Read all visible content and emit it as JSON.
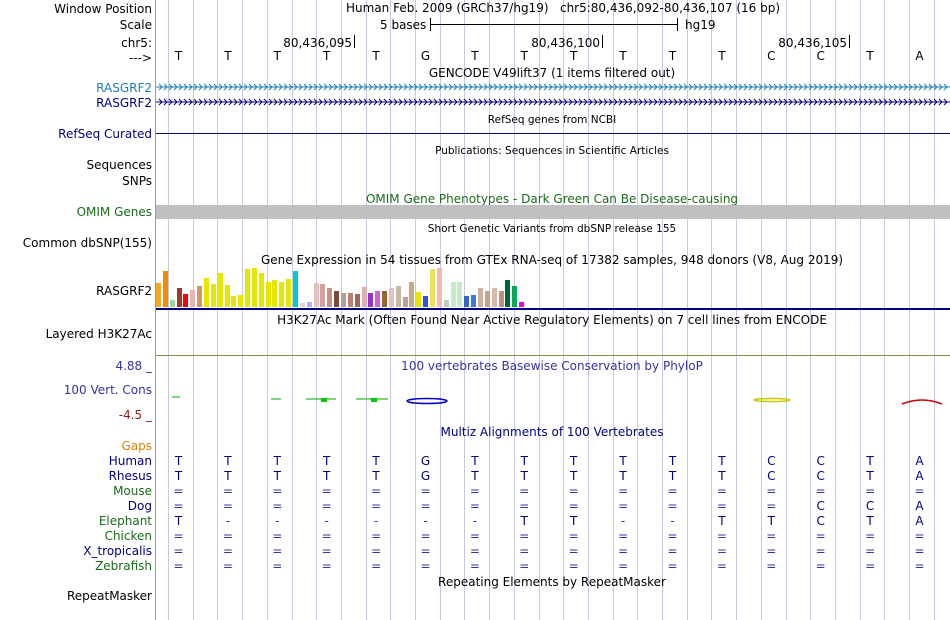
{
  "header": {
    "window_position_label": "Window Position",
    "scale_label": "Scale",
    "chr_label": "chr5:",
    "arrow_label": "--->",
    "assembly": "Human Feb. 2009 (GRCh37/hg19)",
    "position": "chr5:80,436,092-80,436,107 (16 bp)",
    "scale_text": "5 bases",
    "db": "hg19",
    "coords": [
      "80,436,095",
      "80,436,100",
      "80,436,105"
    ]
  },
  "reference_bases": [
    "T",
    "T",
    "T",
    "T",
    "T",
    "G",
    "T",
    "T",
    "T",
    "T",
    "T",
    "T",
    "C",
    "C",
    "T",
    "A"
  ],
  "tracks": {
    "gencode_title": "GENCODE V49lift37 (1 items filtered out)",
    "gencode_items": [
      "RASGRF2",
      "RASGRF2"
    ],
    "refseq_title": "RefSeq genes from NCBI",
    "refseq_label": "RefSeq Curated",
    "publications_title": "Publications: Sequences in Scientific Articles",
    "sequences_label": "Sequences",
    "snps_label": "SNPs",
    "omim_title": "OMIM Gene Phenotypes - Dark Green Can Be Disease-causing",
    "omim_label": "OMIM Genes",
    "dbsnp_title": "Short Genetic Variants from dbSNP release 155",
    "dbsnp_label": "Common dbSNP(155)",
    "gtex_title": "Gene Expression in 54 tissues from GTEx RNA-seq of 17382 samples, 948 donors (V8, Aug 2019)",
    "gtex_label": "RASGRF2",
    "h3k27ac_title": "H3K27Ac Mark (Often Found Near Active Regulatory Elements) on 7 cell lines from ENCODE",
    "h3k27ac_label": "Layered H3K27Ac",
    "phylop_title": "100 vertebrates Basewise Conservation by PhyloP",
    "phylop_label": "100 Vert. Cons",
    "phylop_max": "4.88 _",
    "phylop_min": "-4.5 _",
    "multiz_title": "Multiz Alignments of 100 Vertebrates",
    "gaps_label": "Gaps",
    "repeat_title": "Repeating Elements by RepeatMasker",
    "repeat_label": "RepeatMasker"
  },
  "gtex_bars": [
    {
      "color": "#f5a623",
      "value": 0.62
    },
    {
      "color": "#f28c00",
      "value": 0.92
    },
    {
      "color": "#9fd59f",
      "value": 0.18
    },
    {
      "color": "#9b3c2b",
      "value": 0.49
    },
    {
      "color": "#ff0000",
      "value": 0.34
    },
    {
      "color": "#e8b4b4",
      "value": 0.43
    },
    {
      "color": "#cc9966",
      "value": 0.55
    },
    {
      "color": "#e6e600",
      "value": 0.75
    },
    {
      "color": "#e6e600",
      "value": 0.6
    },
    {
      "color": "#e6e600",
      "value": 0.88
    },
    {
      "color": "#e6e600",
      "value": 0.56
    },
    {
      "color": "#e6e600",
      "value": 0.29
    },
    {
      "color": "#e6e600",
      "value": 0.3
    },
    {
      "color": "#e6e600",
      "value": 0.97
    },
    {
      "color": "#e6e600",
      "value": 1.0
    },
    {
      "color": "#e6e600",
      "value": 0.88
    },
    {
      "color": "#e6e600",
      "value": 0.65
    },
    {
      "color": "#e6e600",
      "value": 0.7
    },
    {
      "color": "#e6e600",
      "value": 0.65
    },
    {
      "color": "#e6e600",
      "value": 0.72
    },
    {
      "color": "#00cccc",
      "value": 0.93
    },
    {
      "color": "#d9d9d9",
      "value": 0.1
    },
    {
      "color": "#aab0ff",
      "value": 0.13
    },
    {
      "color": "#e8c0c0",
      "value": 0.62
    },
    {
      "color": "#d4a0a0",
      "value": 0.6
    },
    {
      "color": "#c89080",
      "value": 0.5
    },
    {
      "color": "#7a4a3a",
      "value": 0.42
    },
    {
      "color": "#b0a0a0",
      "value": 0.37
    },
    {
      "color": "#c08070",
      "value": 0.35
    },
    {
      "color": "#9a6a5a",
      "value": 0.34
    },
    {
      "color": "#e0b0b0",
      "value": 0.52
    },
    {
      "color": "#9933cc",
      "value": 0.35
    },
    {
      "color": "#cc66cc",
      "value": 0.42
    },
    {
      "color": "#996633",
      "value": 0.4
    },
    {
      "color": "#e8c0c0",
      "value": 0.5
    },
    {
      "color": "#c8b8a8",
      "value": 0.55
    },
    {
      "color": "#c0a090",
      "value": 0.25
    },
    {
      "color": "#ccaa88",
      "value": 0.63
    },
    {
      "color": "#e6e600",
      "value": 0.38
    },
    {
      "color": "#3355dd",
      "value": 0.28
    },
    {
      "color": "#f0e060",
      "value": 0.97
    },
    {
      "color": "#f4b8b8",
      "value": 1.0
    },
    {
      "color": "#c0d0c0",
      "value": 0.18
    },
    {
      "color": "#c0f0c0",
      "value": 0.65
    },
    {
      "color": "#c8e8c8",
      "value": 0.65
    },
    {
      "color": "#3366cc",
      "value": 0.27
    },
    {
      "color": "#4477dd",
      "value": 0.3
    },
    {
      "color": "#d0b0a0",
      "value": 0.48
    },
    {
      "color": "#c8a090",
      "value": 0.42
    },
    {
      "color": "#d8b8a8",
      "value": 0.48
    },
    {
      "color": "#c09080",
      "value": 0.41
    },
    {
      "color": "#006633",
      "value": 0.7
    },
    {
      "color": "#00aa55",
      "value": 0.55
    },
    {
      "color": "#ee00ee",
      "value": 0.14
    }
  ],
  "multiz": {
    "species": [
      "Human",
      "Rhesus",
      "Mouse",
      "Dog",
      "Elephant",
      "Chicken",
      "X_tropicalis",
      "Zebrafish"
    ],
    "rows": [
      [
        "T",
        "T",
        "T",
        "T",
        "T",
        "G",
        "T",
        "T",
        "T",
        "T",
        "T",
        "T",
        "C",
        "C",
        "T",
        "A"
      ],
      [
        "T",
        "T",
        "T",
        "T",
        "T",
        "G",
        "T",
        "T",
        "T",
        "T",
        "T",
        "T",
        "C",
        "C",
        "T",
        "A"
      ],
      [
        "=",
        "=",
        "=",
        "=",
        "=",
        "=",
        "=",
        "=",
        "=",
        "=",
        "=",
        "=",
        "=",
        "=",
        "=",
        "="
      ],
      [
        "=",
        "=",
        "=",
        "=",
        "=",
        "=",
        "=",
        "=",
        "=",
        "=",
        "=",
        "=",
        "=",
        "C",
        "C",
        "A"
      ],
      [
        "T",
        "-",
        "-",
        "-",
        "-",
        "-",
        "-",
        "T",
        "T",
        "-",
        "-",
        "T",
        "T",
        "C",
        "T",
        "A"
      ],
      [
        "=",
        "=",
        "=",
        "=",
        "=",
        "=",
        "=",
        "=",
        "=",
        "=",
        "=",
        "=",
        "=",
        "=",
        "=",
        "="
      ],
      [
        "=",
        "=",
        "=",
        "=",
        "=",
        "=",
        "=",
        "=",
        "=",
        "=",
        "=",
        "=",
        "=",
        "=",
        "=",
        "="
      ],
      [
        "=",
        "=",
        "=",
        "=",
        "=",
        "=",
        "=",
        "=",
        "=",
        "=",
        "=",
        "=",
        "=",
        "=",
        "=",
        "="
      ]
    ]
  },
  "colors": {
    "navy": "#000080",
    "gencode_blue": "#1c7fb3",
    "omim_green": "#1a6b1a",
    "phylop_blue": "#3333aa",
    "phylop_red": "#8b1a1a",
    "gaps_orange": "#e08000",
    "omim_bar": "#c0c0c0",
    "h3k27ac_line": "#8b8b45"
  }
}
